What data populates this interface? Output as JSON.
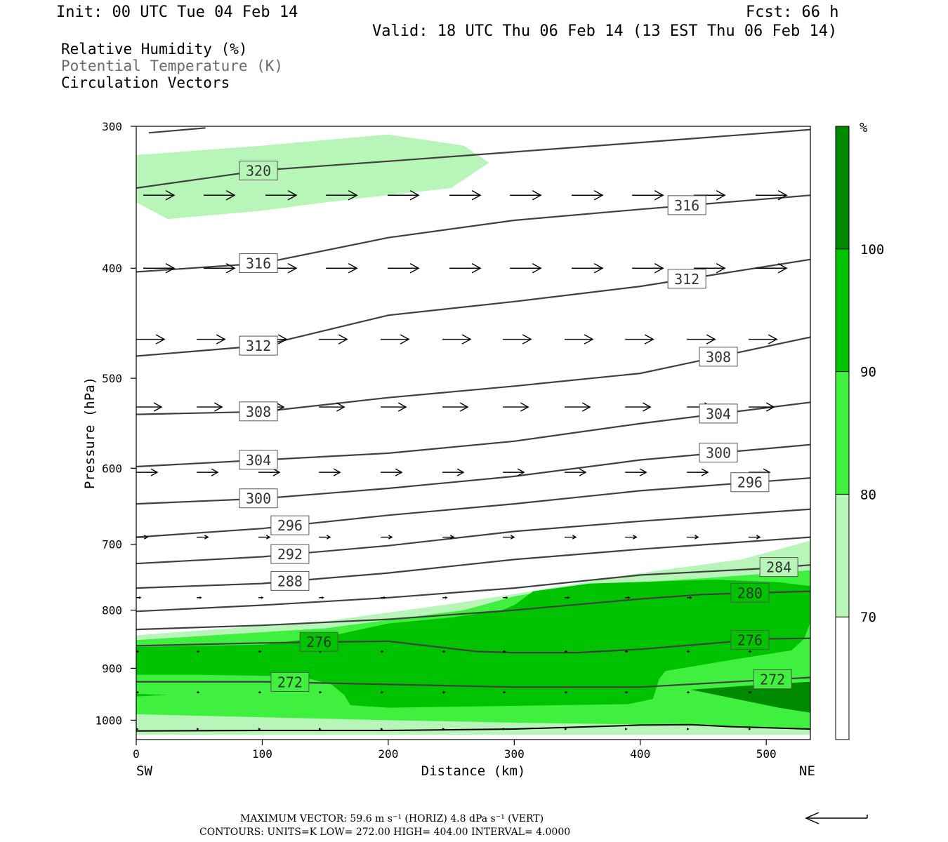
{
  "header": {
    "init": "Init: 00 UTC Tue 04 Feb 14",
    "fcst": "Fcst:   66 h",
    "valid": "Valid: 18 UTC Thu 06 Feb 14 (13 EST Thu 06 Feb 14)"
  },
  "legend_lines": [
    "Relative Humidity (%)",
    "Potential Temperature (K)",
    "Circulation Vectors"
  ],
  "colors": {
    "rh_70": "#b8f5b8",
    "rh_80": "#3ff03f",
    "rh_90": "#00c300",
    "rh_100": "#008a00",
    "isentrope": "#404040",
    "vector": "#000000",
    "legend_gray": "#6a6a6a"
  },
  "chart_data": {
    "type": "cross-section",
    "xlabel": "Distance (km)",
    "ylabel": "Pressure (hPa)",
    "xlim": [
      0,
      535
    ],
    "ylim": [
      1040,
      300
    ],
    "y_log_scale": true,
    "x_ticks": [
      0,
      100,
      200,
      300,
      400,
      500
    ],
    "y_ticks": [
      300,
      400,
      500,
      600,
      700,
      800,
      900,
      1000
    ],
    "x_end_labels": {
      "left": "SW",
      "right": "NE"
    },
    "colorbar": {
      "unit": "%",
      "levels": [
        70,
        80,
        90,
        100
      ]
    },
    "rh_regions": [
      {
        "level": 70,
        "polygons": [
          [
            [
              0,
              318
            ],
            [
              100,
              312
            ],
            [
              200,
              305
            ],
            [
              260,
              312
            ],
            [
              280,
              323
            ],
            [
              250,
              340
            ],
            [
              150,
              350
            ],
            [
              100,
              356
            ],
            [
              25,
              362
            ],
            [
              0,
              350
            ]
          ],
          [
            [
              0,
              842
            ],
            [
              150,
              818
            ],
            [
              250,
              790
            ],
            [
              320,
              768
            ],
            [
              400,
              742
            ],
            [
              480,
              722
            ],
            [
              535,
              695
            ],
            [
              535,
              1030
            ],
            [
              0,
              1030
            ]
          ]
        ]
      },
      {
        "level": 80,
        "polygons": [
          [
            [
              0,
              850
            ],
            [
              150,
              830
            ],
            [
              260,
              800
            ],
            [
              300,
              778
            ],
            [
              350,
              762
            ],
            [
              450,
              750
            ],
            [
              535,
              738
            ],
            [
              535,
              1020
            ],
            [
              480,
              1012
            ],
            [
              300,
              1005
            ],
            [
              200,
              1000
            ],
            [
              0,
              988
            ]
          ]
        ]
      },
      {
        "level": 90,
        "polygons": [
          [
            [
              0,
              862
            ],
            [
              100,
              858
            ],
            [
              150,
              845
            ],
            [
              200,
              822
            ],
            [
              250,
              812
            ],
            [
              290,
              800
            ],
            [
              300,
              792
            ],
            [
              315,
              770
            ],
            [
              360,
              758
            ],
            [
              460,
              752
            ],
            [
              510,
              756
            ],
            [
              535,
              762
            ],
            [
              535,
              820
            ],
            [
              530,
              848
            ],
            [
              520,
              868
            ],
            [
              480,
              882
            ],
            [
              420,
              905
            ],
            [
              415,
              920
            ],
            [
              410,
              958
            ],
            [
              390,
              968
            ],
            [
              200,
              975
            ],
            [
              170,
              970
            ],
            [
              165,
              950
            ],
            [
              155,
              930
            ],
            [
              130,
              915
            ],
            [
              50,
              912
            ],
            [
              0,
              912
            ]
          ],
          [
            [
              0,
              948
            ],
            [
              25,
              950
            ],
            [
              0,
              953
            ]
          ]
        ]
      },
      {
        "level": 100,
        "polygons": [
          [
            [
              440,
              940
            ],
            [
              500,
              930
            ],
            [
              535,
              925
            ],
            [
              535,
              985
            ],
            [
              510,
              975
            ]
          ]
        ]
      }
    ],
    "isentropes": [
      {
        "theta": 272,
        "points": [
          [
            0,
            925
          ],
          [
            100,
            925
          ],
          [
            200,
            930
          ],
          [
            300,
            935
          ],
          [
            400,
            935
          ],
          [
            535,
            917
          ]
        ],
        "labels": [
          {
            "x": 122,
            "text": "272"
          },
          {
            "x": 505,
            "text": "272"
          }
        ]
      },
      {
        "theta": 276,
        "points": [
          [
            0,
            860
          ],
          [
            100,
            855
          ],
          [
            200,
            852
          ],
          [
            270,
            870
          ],
          [
            300,
            872
          ],
          [
            350,
            872
          ],
          [
            400,
            866
          ],
          [
            500,
            848
          ],
          [
            535,
            847
          ]
        ],
        "labels": [
          {
            "x": 145,
            "text": "276"
          },
          {
            "x": 487,
            "text": "276"
          }
        ]
      },
      {
        "theta": 280,
        "points": [
          [
            0,
            832
          ],
          [
            100,
            825
          ],
          [
            200,
            815
          ],
          [
            300,
            800
          ],
          [
            400,
            782
          ],
          [
            450,
            775
          ],
          [
            535,
            770
          ]
        ],
        "labels": [
          {
            "x": 487,
            "text": "280"
          }
        ]
      },
      {
        "theta": 284,
        "points": [
          [
            0,
            802
          ],
          [
            100,
            792
          ],
          [
            200,
            780
          ],
          [
            300,
            765
          ],
          [
            400,
            745
          ],
          [
            500,
            735
          ],
          [
            535,
            730
          ]
        ],
        "labels": [
          {
            "x": 510,
            "text": "284"
          }
        ]
      },
      {
        "theta": 288,
        "points": [
          [
            0,
            765
          ],
          [
            100,
            758
          ],
          [
            200,
            742
          ],
          [
            300,
            722
          ],
          [
            400,
            707
          ],
          [
            535,
            690
          ]
        ],
        "labels": [
          {
            "x": 122,
            "text": "288"
          }
        ]
      },
      {
        "theta": 292,
        "points": [
          [
            0,
            728
          ],
          [
            100,
            718
          ],
          [
            200,
            702
          ],
          [
            300,
            682
          ],
          [
            400,
            668
          ],
          [
            535,
            652
          ]
        ],
        "labels": [
          {
            "x": 122,
            "text": "292"
          }
        ]
      },
      {
        "theta": 296,
        "points": [
          [
            0,
            690
          ],
          [
            100,
            678
          ],
          [
            200,
            660
          ],
          [
            300,
            645
          ],
          [
            400,
            628
          ],
          [
            535,
            612
          ]
        ],
        "labels": [
          {
            "x": 122,
            "text": "296"
          },
          {
            "x": 487,
            "text": "296"
          }
        ]
      },
      {
        "theta": 300,
        "points": [
          [
            0,
            645
          ],
          [
            100,
            638
          ],
          [
            200,
            625
          ],
          [
            300,
            610
          ],
          [
            400,
            590
          ],
          [
            535,
            572
          ]
        ],
        "labels": [
          {
            "x": 97,
            "text": "300"
          },
          {
            "x": 462,
            "text": "300"
          }
        ]
      },
      {
        "theta": 304,
        "points": [
          [
            0,
            598
          ],
          [
            100,
            590
          ],
          [
            200,
            582
          ],
          [
            300,
            568
          ],
          [
            400,
            548
          ],
          [
            535,
            525
          ]
        ],
        "labels": [
          {
            "x": 97,
            "text": "304"
          },
          {
            "x": 462,
            "text": "304"
          }
        ]
      },
      {
        "theta": 308,
        "points": [
          [
            0,
            538
          ],
          [
            100,
            535
          ],
          [
            200,
            520
          ],
          [
            300,
            508
          ],
          [
            400,
            495
          ],
          [
            535,
            460
          ]
        ],
        "labels": [
          {
            "x": 97,
            "text": "308"
          },
          {
            "x": 462,
            "text": "308"
          }
        ]
      },
      {
        "theta": 312,
        "points": [
          [
            0,
            478
          ],
          [
            100,
            468
          ],
          [
            200,
            440
          ],
          [
            300,
            428
          ],
          [
            400,
            415
          ],
          [
            535,
            393
          ]
        ],
        "labels": [
          {
            "x": 97,
            "text": "312"
          },
          {
            "x": 437,
            "text": "312"
          }
        ]
      },
      {
        "theta": 316,
        "points": [
          [
            0,
            403
          ],
          [
            100,
            396
          ],
          [
            200,
            376
          ],
          [
            300,
            363
          ],
          [
            400,
            355
          ],
          [
            535,
            345
          ]
        ],
        "labels": [
          {
            "x": 97,
            "text": "316"
          },
          {
            "x": 437,
            "text": "316"
          }
        ]
      },
      {
        "theta": 320,
        "points": [
          [
            0,
            340
          ],
          [
            100,
            328
          ],
          [
            200,
            322
          ],
          [
            300,
            316
          ],
          [
            400,
            310
          ],
          [
            535,
            302
          ]
        ],
        "labels": [
          {
            "x": 97,
            "text": "320"
          }
        ]
      },
      {
        "theta": 324,
        "points": [
          [
            10,
            304
          ],
          [
            55,
            301
          ]
        ],
        "labels": []
      }
    ],
    "vectors": [
      {
        "p": 345,
        "dy": 0,
        "y_per_x": {
          "320": 3,
          "350": 2
        },
        "len": 44
      },
      {
        "p": 400,
        "dy": 0,
        "len": 44
      },
      {
        "p": 462,
        "dy": 0,
        "len": 40
      },
      {
        "p": 530,
        "dy": 0,
        "len": 36
      },
      {
        "p": 605,
        "dy": 0,
        "len": 30
      },
      {
        "p": 690,
        "dy": 0,
        "len": 16
      },
      {
        "p": 780,
        "dy": 0,
        "len": 6
      },
      {
        "p": 870,
        "dy": 0,
        "len": 3
      },
      {
        "p": 945,
        "dy": 0,
        "len": 3
      },
      {
        "p": 1018,
        "dy": 0,
        "len": 2
      }
    ],
    "surface_line": [
      [
        0,
        1022
      ],
      [
        100,
        1021
      ],
      [
        200,
        1021
      ],
      [
        300,
        1018
      ],
      [
        400,
        1010
      ],
      [
        440,
        1009
      ],
      [
        470,
        1013
      ],
      [
        535,
        1018
      ]
    ]
  },
  "footer": {
    "max_vector": "MAXIMUM VECTOR:  59.6 m s⁻¹ (HORIZ)          4.8 dPa s⁻¹ (VERT)",
    "contours": "CONTOURS:  UNITS=K  LOW=   272.00        HIGH=   404.00        INTERVAL=     4.0000"
  }
}
